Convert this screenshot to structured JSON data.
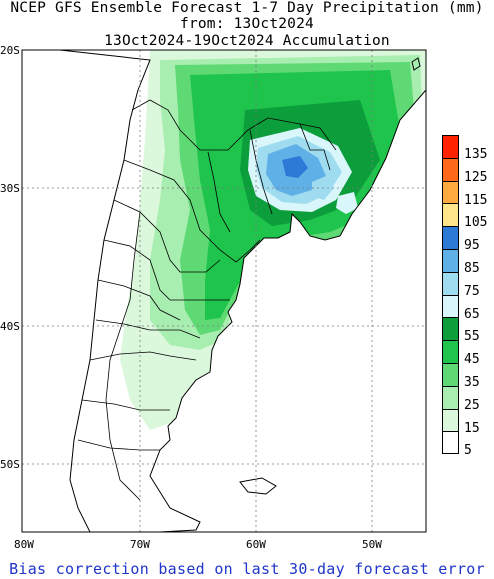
{
  "header": {
    "line1": "NCEP GFS Ensemble Forecast 1-7 Day Precipitation (mm)",
    "line2": "from: 13Oct2024",
    "line3": "13Oct2024-19Oct2024 Accumulation"
  },
  "map": {
    "region": "southern South America",
    "lat_labels": [
      "20S",
      "30S",
      "40S",
      "50S"
    ],
    "lon_labels": [
      "80W",
      "70W",
      "60W",
      "50W"
    ],
    "colors": {
      "land_outline": "#000000",
      "grid": "#7a7a7a",
      "precip_5": "#ffffff",
      "precip_15": "#dcf8dc",
      "precip_25": "#a8eeb0",
      "precip_35": "#5ed973",
      "precip_45": "#1fc44c",
      "precip_55": "#0d9e3c",
      "precip_65": "#d9f7fb",
      "precip_75": "#9fdcf0",
      "precip_85": "#5fb0e6",
      "precip_95": "#2d79d6"
    }
  },
  "legend": {
    "items": [
      {
        "label": "135",
        "color": "#ff2200"
      },
      {
        "label": "125",
        "color": "#ff6a1a"
      },
      {
        "label": "115",
        "color": "#ffaa40"
      },
      {
        "label": "105",
        "color": "#ffe68a"
      },
      {
        "label": "95",
        "color": "#2d79d6"
      },
      {
        "label": "85",
        "color": "#5fb0e6"
      },
      {
        "label": "75",
        "color": "#9fdcf0"
      },
      {
        "label": "65",
        "color": "#d9f7fb"
      },
      {
        "label": "55",
        "color": "#0d9e3c"
      },
      {
        "label": "45",
        "color": "#1fc44c"
      },
      {
        "label": "35",
        "color": "#5ed973"
      },
      {
        "label": "25",
        "color": "#a8eeb0"
      },
      {
        "label": "15",
        "color": "#dcf8dc"
      },
      {
        "label": "5",
        "color": "#ffffff"
      }
    ]
  },
  "footer": {
    "text": "Bias correction based on last 30-day forecast error"
  }
}
